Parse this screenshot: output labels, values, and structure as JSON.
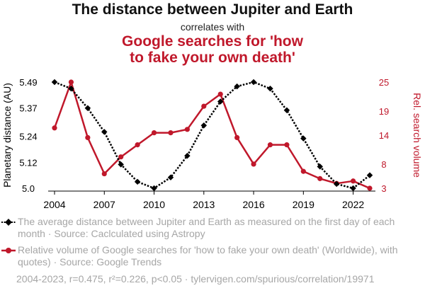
{
  "header": {
    "title": "The distance between Jupiter and Earth",
    "subtitle": "correlates with",
    "title2_line1": "Google searches for 'how",
    "title2_line2": "to fake your own death'"
  },
  "legend": {
    "series1": "The average distance between Jupiter and Earth as measured on the first day of each month · Source: Caclculated using Astropy",
    "series2": "Relative volume of Google searches for 'how to fake your own death' (Worldwide), with quotes) · Source: Google Trends"
  },
  "footer": "2004-2023, r=0.475, r²=0.226, p<0.05 · tylervigen.com/spurious/correlation/19971",
  "colors": {
    "series1": "#000000",
    "series2": "#c0182b",
    "gray": "#a6a6a6"
  },
  "chart_data": {
    "type": "line",
    "x": [
      2004,
      2005,
      2006,
      2007,
      2008,
      2009,
      2010,
      2011,
      2012,
      2013,
      2014,
      2015,
      2016,
      2017,
      2018,
      2019,
      2020,
      2021,
      2022,
      2023
    ],
    "xticks": [
      2004,
      2007,
      2010,
      2013,
      2016,
      2019,
      2022
    ],
    "series": [
      {
        "name": "Jupiter-Earth distance",
        "axis": "left",
        "values": [
          5.49,
          5.46,
          5.37,
          5.26,
          5.11,
          5.03,
          5.0,
          5.05,
          5.15,
          5.29,
          5.4,
          5.47,
          5.49,
          5.46,
          5.36,
          5.23,
          5.1,
          5.02,
          5.0,
          5.06
        ]
      },
      {
        "name": "Google searches for 'how to fake your own death'",
        "axis": "right",
        "values": [
          15.5,
          25,
          13.5,
          6,
          9.5,
          12,
          14.5,
          14.5,
          15.2,
          20,
          22.5,
          13.5,
          8,
          12,
          12,
          6.5,
          5,
          4,
          4.5,
          3
        ]
      }
    ],
    "left_axis": {
      "label": "Planetary distance (AU)",
      "min": 5.0,
      "max": 5.49,
      "ticks": [
        "5.0",
        "5.12",
        "5.24",
        "5.37",
        "5.49"
      ]
    },
    "right_axis": {
      "label": "Rel. search volume",
      "min": 3,
      "max": 25,
      "ticks": [
        "3",
        "8",
        "14",
        "19",
        "25"
      ]
    }
  }
}
